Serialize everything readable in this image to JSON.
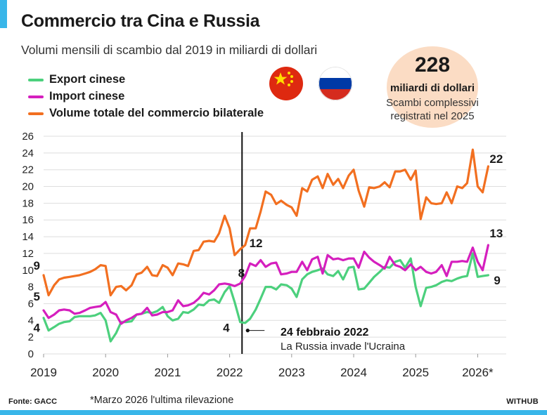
{
  "title": "Commercio tra Cina e Russia",
  "subtitle": "Volumi mensili di scambio dal 2019 in miliardi di dollari",
  "legend": [
    {
      "label": "Export cinese",
      "color": "#4cd07d"
    },
    {
      "label": "Import cinese",
      "color": "#d51fbe"
    },
    {
      "label": "Volume totale del commercio bilaterale",
      "color": "#f26f20"
    }
  ],
  "flags": [
    {
      "name": "china-flag-icon",
      "colors": [
        "#de2910",
        "#ffde00"
      ]
    },
    {
      "name": "russia-flag-icon",
      "colors": [
        "#ffffff",
        "#0039a6",
        "#d52b1e"
      ]
    }
  ],
  "total_badge": {
    "value": "228",
    "unit": "miliardi di dollari",
    "description": "Scambi complessivi registrati nel 2025"
  },
  "source": "Fonte: GACC",
  "footnote": "*Marzo 2026 l'ultima rilevazione",
  "brand": "WITHUB",
  "chart_data": {
    "type": "line",
    "title": "Commercio tra Cina e Russia",
    "x_unit": "year (fractional, monthly points)",
    "ylim": [
      0,
      26
    ],
    "y_ticks": [
      0,
      2,
      4,
      6,
      8,
      10,
      12,
      14,
      16,
      18,
      20,
      22,
      24,
      26
    ],
    "x_ticks": [
      {
        "x": 2019,
        "label": "2019"
      },
      {
        "x": 2020,
        "label": "2020"
      },
      {
        "x": 2021,
        "label": "2021"
      },
      {
        "x": 2022,
        "label": "2022"
      },
      {
        "x": 2023,
        "label": "2023"
      },
      {
        "x": 2024,
        "label": "2024"
      },
      {
        "x": 2025,
        "label": "2025"
      },
      {
        "x": 2026,
        "label": "2026*"
      }
    ],
    "grid": true,
    "legend_position": "top-left",
    "series": [
      {
        "name": "Export cinese",
        "color": "#4cd07d",
        "points": [
          [
            2019.0,
            4.3
          ],
          [
            2019.08,
            2.8
          ],
          [
            2019.17,
            3.2
          ],
          [
            2019.25,
            3.6
          ],
          [
            2019.33,
            3.8
          ],
          [
            2019.42,
            3.9
          ],
          [
            2019.5,
            4.4
          ],
          [
            2019.58,
            4.5
          ],
          [
            2019.67,
            4.5
          ],
          [
            2019.75,
            4.5
          ],
          [
            2019.83,
            4.6
          ],
          [
            2019.92,
            4.9
          ],
          [
            2020.0,
            4.0
          ],
          [
            2020.08,
            1.5
          ],
          [
            2020.17,
            2.5
          ],
          [
            2020.25,
            3.8
          ],
          [
            2020.33,
            3.8
          ],
          [
            2020.42,
            3.9
          ],
          [
            2020.5,
            4.7
          ],
          [
            2020.58,
            4.8
          ],
          [
            2020.67,
            5.0
          ],
          [
            2020.75,
            4.9
          ],
          [
            2020.83,
            5.1
          ],
          [
            2020.92,
            5.6
          ],
          [
            2021.0,
            4.5
          ],
          [
            2021.08,
            4.0
          ],
          [
            2021.17,
            4.2
          ],
          [
            2021.25,
            5.0
          ],
          [
            2021.33,
            4.9
          ],
          [
            2021.42,
            5.3
          ],
          [
            2021.5,
            5.9
          ],
          [
            2021.58,
            5.8
          ],
          [
            2021.67,
            6.4
          ],
          [
            2021.75,
            6.5
          ],
          [
            2021.83,
            6.1
          ],
          [
            2021.92,
            7.4
          ],
          [
            2022.0,
            8.1
          ],
          [
            2022.08,
            6.2
          ],
          [
            2022.17,
            3.8
          ],
          [
            2022.25,
            3.7
          ],
          [
            2022.33,
            4.2
          ],
          [
            2022.42,
            5.3
          ],
          [
            2022.5,
            6.6
          ],
          [
            2022.58,
            8.0
          ],
          [
            2022.67,
            8.0
          ],
          [
            2022.75,
            7.7
          ],
          [
            2022.83,
            8.3
          ],
          [
            2022.92,
            8.2
          ],
          [
            2023.0,
            7.8
          ],
          [
            2023.08,
            6.8
          ],
          [
            2023.17,
            8.9
          ],
          [
            2023.25,
            9.5
          ],
          [
            2023.33,
            9.8
          ],
          [
            2023.42,
            10.0
          ],
          [
            2023.5,
            10.2
          ],
          [
            2023.58,
            9.5
          ],
          [
            2023.67,
            9.3
          ],
          [
            2023.75,
            9.9
          ],
          [
            2023.83,
            8.9
          ],
          [
            2023.92,
            10.3
          ],
          [
            2024.0,
            10.4
          ],
          [
            2024.08,
            7.7
          ],
          [
            2024.17,
            7.8
          ],
          [
            2024.25,
            8.5
          ],
          [
            2024.33,
            9.2
          ],
          [
            2024.42,
            9.8
          ],
          [
            2024.5,
            10.4
          ],
          [
            2024.58,
            10.3
          ],
          [
            2024.67,
            11.0
          ],
          [
            2024.75,
            11.2
          ],
          [
            2024.83,
            10.3
          ],
          [
            2024.92,
            11.4
          ],
          [
            2025.0,
            8.0
          ],
          [
            2025.08,
            5.7
          ],
          [
            2025.17,
            7.9
          ],
          [
            2025.25,
            8.0
          ],
          [
            2025.33,
            8.2
          ],
          [
            2025.42,
            8.6
          ],
          [
            2025.5,
            8.8
          ],
          [
            2025.58,
            8.7
          ],
          [
            2025.67,
            9.0
          ],
          [
            2025.75,
            9.2
          ],
          [
            2025.83,
            9.3
          ],
          [
            2025.92,
            12.0
          ],
          [
            2026.0,
            9.2
          ],
          [
            2026.08,
            9.3
          ],
          [
            2026.17,
            9.4
          ]
        ]
      },
      {
        "name": "Import cinese",
        "color": "#d51fbe",
        "points": [
          [
            2019.0,
            5.2
          ],
          [
            2019.08,
            4.3
          ],
          [
            2019.17,
            4.7
          ],
          [
            2019.25,
            5.2
          ],
          [
            2019.33,
            5.3
          ],
          [
            2019.42,
            5.2
          ],
          [
            2019.5,
            4.8
          ],
          [
            2019.58,
            4.9
          ],
          [
            2019.67,
            5.2
          ],
          [
            2019.75,
            5.5
          ],
          [
            2019.83,
            5.6
          ],
          [
            2019.92,
            5.7
          ],
          [
            2020.0,
            6.2
          ],
          [
            2020.08,
            5.0
          ],
          [
            2020.17,
            4.7
          ],
          [
            2020.25,
            3.6
          ],
          [
            2020.33,
            4.0
          ],
          [
            2020.42,
            4.3
          ],
          [
            2020.5,
            4.7
          ],
          [
            2020.58,
            4.8
          ],
          [
            2020.67,
            5.5
          ],
          [
            2020.75,
            4.6
          ],
          [
            2020.83,
            4.7
          ],
          [
            2020.92,
            5.0
          ],
          [
            2021.0,
            5.0
          ],
          [
            2021.08,
            5.2
          ],
          [
            2021.17,
            6.4
          ],
          [
            2021.25,
            5.7
          ],
          [
            2021.33,
            5.8
          ],
          [
            2021.42,
            6.1
          ],
          [
            2021.5,
            6.6
          ],
          [
            2021.58,
            7.3
          ],
          [
            2021.67,
            7.1
          ],
          [
            2021.75,
            7.6
          ],
          [
            2021.83,
            8.3
          ],
          [
            2021.92,
            8.4
          ],
          [
            2022.0,
            8.3
          ],
          [
            2022.08,
            8.1
          ],
          [
            2022.17,
            8.4
          ],
          [
            2022.25,
            9.3
          ],
          [
            2022.33,
            10.8
          ],
          [
            2022.42,
            10.5
          ],
          [
            2022.5,
            11.2
          ],
          [
            2022.58,
            10.4
          ],
          [
            2022.67,
            10.8
          ],
          [
            2022.75,
            10.9
          ],
          [
            2022.83,
            9.5
          ],
          [
            2022.92,
            9.6
          ],
          [
            2023.0,
            9.8
          ],
          [
            2023.08,
            9.8
          ],
          [
            2023.17,
            11.0
          ],
          [
            2023.25,
            10.0
          ],
          [
            2023.33,
            11.3
          ],
          [
            2023.42,
            11.6
          ],
          [
            2023.5,
            9.6
          ],
          [
            2023.58,
            11.8
          ],
          [
            2023.67,
            11.3
          ],
          [
            2023.75,
            11.4
          ],
          [
            2023.83,
            11.2
          ],
          [
            2023.92,
            11.4
          ],
          [
            2024.0,
            11.4
          ],
          [
            2024.08,
            10.3
          ],
          [
            2024.17,
            12.2
          ],
          [
            2024.25,
            11.5
          ],
          [
            2024.33,
            11.0
          ],
          [
            2024.42,
            10.6
          ],
          [
            2024.5,
            10.2
          ],
          [
            2024.58,
            11.6
          ],
          [
            2024.67,
            10.6
          ],
          [
            2024.75,
            10.4
          ],
          [
            2024.83,
            10.0
          ],
          [
            2024.92,
            10.7
          ],
          [
            2025.0,
            10.0
          ],
          [
            2025.08,
            10.4
          ],
          [
            2025.17,
            9.8
          ],
          [
            2025.25,
            9.6
          ],
          [
            2025.33,
            9.8
          ],
          [
            2025.42,
            10.6
          ],
          [
            2025.5,
            9.3
          ],
          [
            2025.58,
            11.0
          ],
          [
            2025.67,
            11.0
          ],
          [
            2025.75,
            11.1
          ],
          [
            2025.83,
            11.0
          ],
          [
            2025.92,
            12.7
          ],
          [
            2026.0,
            11.0
          ],
          [
            2026.08,
            10.0
          ],
          [
            2026.17,
            13.0
          ]
        ]
      },
      {
        "name": "Volume totale del commercio bilaterale",
        "color": "#f26f20",
        "points": [
          [
            2019.0,
            9.4
          ],
          [
            2019.08,
            7.0
          ],
          [
            2019.17,
            8.2
          ],
          [
            2019.25,
            8.9
          ],
          [
            2019.33,
            9.1
          ],
          [
            2019.42,
            9.2
          ],
          [
            2019.5,
            9.3
          ],
          [
            2019.58,
            9.4
          ],
          [
            2019.67,
            9.6
          ],
          [
            2019.75,
            9.8
          ],
          [
            2019.83,
            10.1
          ],
          [
            2019.92,
            10.6
          ],
          [
            2020.0,
            10.5
          ],
          [
            2020.08,
            7.0
          ],
          [
            2020.17,
            8.0
          ],
          [
            2020.25,
            8.1
          ],
          [
            2020.33,
            7.6
          ],
          [
            2020.42,
            8.2
          ],
          [
            2020.5,
            9.5
          ],
          [
            2020.58,
            9.7
          ],
          [
            2020.67,
            10.4
          ],
          [
            2020.75,
            9.4
          ],
          [
            2020.83,
            9.3
          ],
          [
            2020.92,
            10.6
          ],
          [
            2021.0,
            10.3
          ],
          [
            2021.08,
            9.4
          ],
          [
            2021.17,
            10.8
          ],
          [
            2021.25,
            10.7
          ],
          [
            2021.33,
            10.5
          ],
          [
            2021.42,
            12.3
          ],
          [
            2021.5,
            12.4
          ],
          [
            2021.58,
            13.4
          ],
          [
            2021.67,
            13.5
          ],
          [
            2021.75,
            13.4
          ],
          [
            2021.83,
            14.4
          ],
          [
            2021.92,
            16.5
          ],
          [
            2022.0,
            15.0
          ],
          [
            2022.08,
            11.8
          ],
          [
            2022.17,
            12.5
          ],
          [
            2022.25,
            13.0
          ],
          [
            2022.33,
            15.0
          ],
          [
            2022.42,
            15.0
          ],
          [
            2022.5,
            17.0
          ],
          [
            2022.58,
            19.4
          ],
          [
            2022.67,
            19.0
          ],
          [
            2022.75,
            17.9
          ],
          [
            2022.83,
            18.3
          ],
          [
            2022.92,
            17.8
          ],
          [
            2023.0,
            17.5
          ],
          [
            2023.08,
            16.5
          ],
          [
            2023.17,
            19.8
          ],
          [
            2023.25,
            19.4
          ],
          [
            2023.33,
            20.8
          ],
          [
            2023.42,
            21.2
          ],
          [
            2023.5,
            19.8
          ],
          [
            2023.58,
            21.5
          ],
          [
            2023.67,
            20.2
          ],
          [
            2023.75,
            20.9
          ],
          [
            2023.83,
            19.8
          ],
          [
            2023.92,
            21.3
          ],
          [
            2024.0,
            22.0
          ],
          [
            2024.08,
            19.5
          ],
          [
            2024.17,
            17.6
          ],
          [
            2024.25,
            19.9
          ],
          [
            2024.33,
            19.8
          ],
          [
            2024.42,
            20.0
          ],
          [
            2024.5,
            20.5
          ],
          [
            2024.58,
            19.9
          ],
          [
            2024.67,
            21.8
          ],
          [
            2024.75,
            21.8
          ],
          [
            2024.83,
            22.0
          ],
          [
            2024.92,
            20.8
          ],
          [
            2025.0,
            21.9
          ],
          [
            2025.08,
            16.1
          ],
          [
            2025.17,
            18.7
          ],
          [
            2025.25,
            18.0
          ],
          [
            2025.33,
            17.9
          ],
          [
            2025.42,
            18.0
          ],
          [
            2025.5,
            19.3
          ],
          [
            2025.58,
            18.0
          ],
          [
            2025.67,
            20.0
          ],
          [
            2025.75,
            19.8
          ],
          [
            2025.83,
            20.4
          ],
          [
            2025.92,
            24.4
          ],
          [
            2026.0,
            20.0
          ],
          [
            2026.08,
            19.3
          ],
          [
            2026.17,
            22.4
          ]
        ]
      }
    ],
    "annotations": [
      {
        "text": "9",
        "x": 2019.0,
        "y": 9.4,
        "dx": -5,
        "dy": -8,
        "color": "#1a1a1a"
      },
      {
        "text": "5",
        "x": 2019.0,
        "y": 5.2,
        "dx": -5,
        "dy": -14,
        "color": "#1a1a1a"
      },
      {
        "text": "4",
        "x": 2019.0,
        "y": 4.3,
        "dx": -5,
        "dy": 20,
        "color": "#1a1a1a"
      },
      {
        "text": "12",
        "x": 2022.17,
        "y": 12.5,
        "dx": 13,
        "dy": -3,
        "color": "#1a1a1a"
      },
      {
        "text": "8",
        "x": 2022.08,
        "y": 8.1,
        "dx": 5,
        "dy": -13,
        "color": "#1a1a1a"
      },
      {
        "text": "4",
        "x": 2022.17,
        "y": 3.8,
        "dx": -15,
        "dy": 14,
        "color": "#1a1a1a"
      },
      {
        "text": "22",
        "x": 2026.17,
        "y": 22.4,
        "dx": 2,
        "dy": -5,
        "color": "#1a1a1a"
      },
      {
        "text": "13",
        "x": 2026.17,
        "y": 13.0,
        "dx": 2,
        "dy": -11,
        "color": "#1a1a1a"
      },
      {
        "text": "9",
        "x": 2026.17,
        "y": 9.4,
        "dx": 8,
        "dy": 13,
        "color": "#1a1a1a"
      }
    ],
    "event": {
      "x": 2022.2,
      "label": "24 febbraio 2022",
      "description": "La Russia invade l'Ucraina",
      "marker_y": 2.8
    }
  }
}
